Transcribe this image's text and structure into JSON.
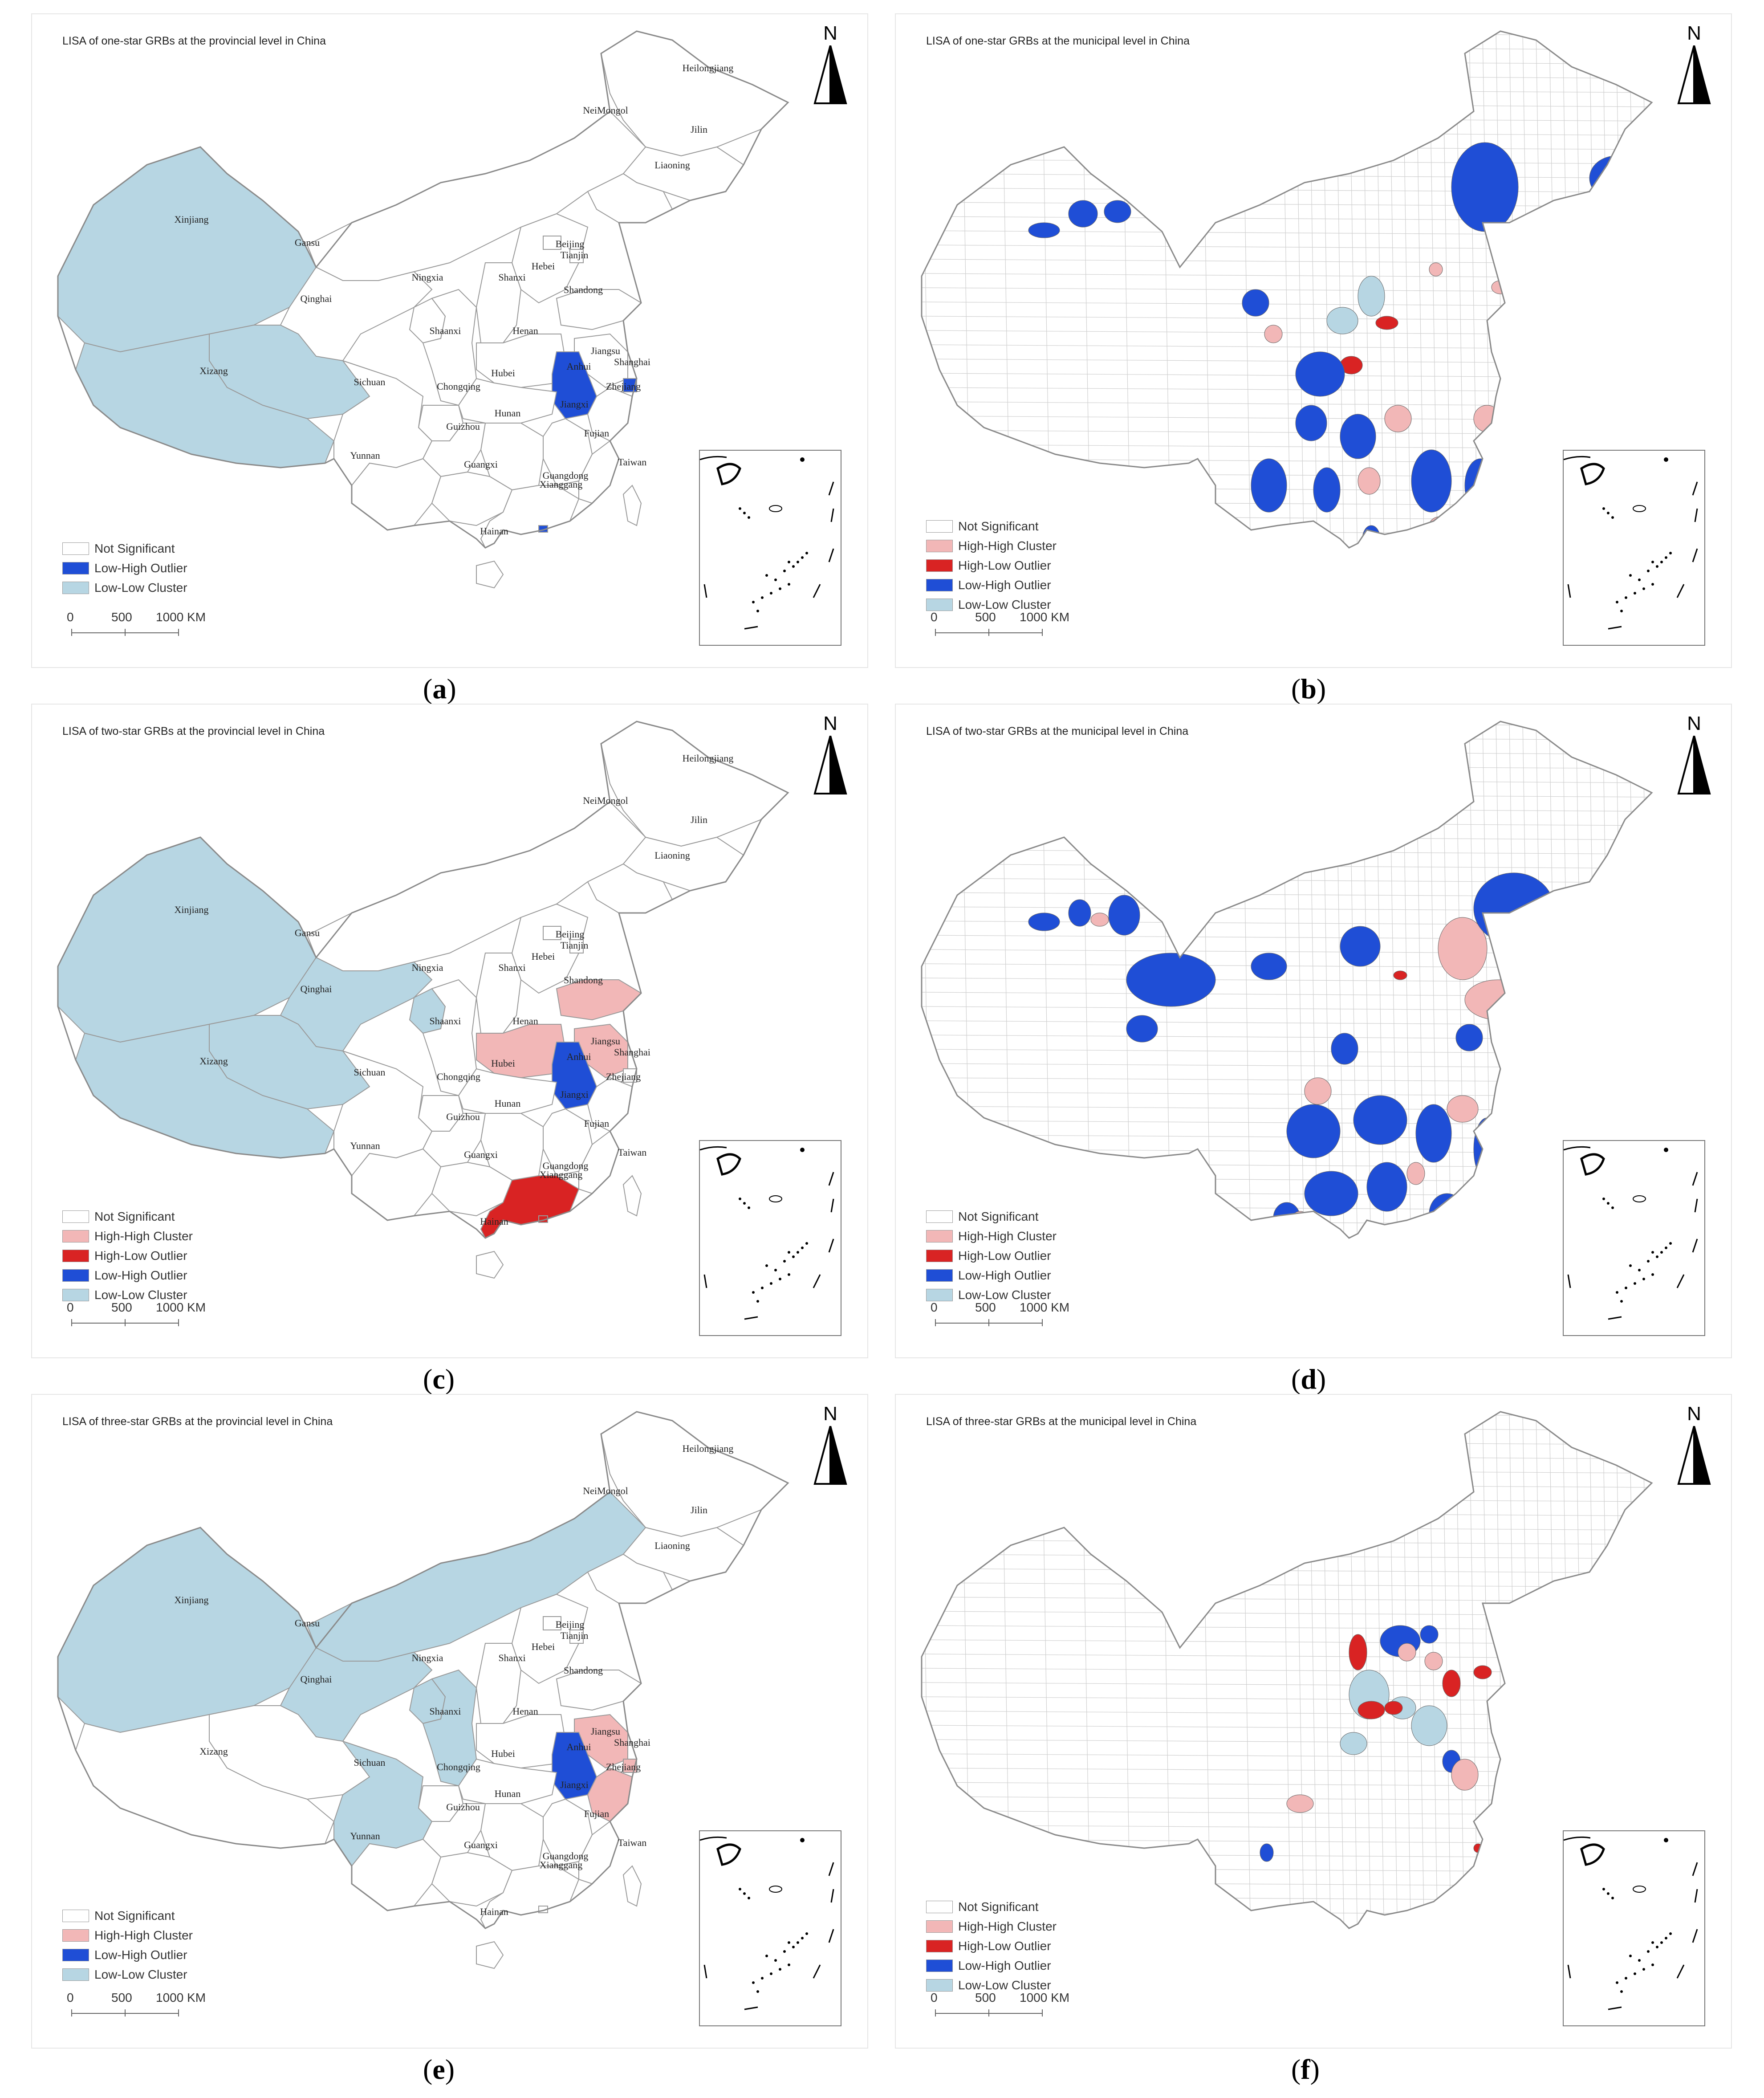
{
  "north_label": "N",
  "scale_labels": [
    "0",
    "500",
    "1000 KM"
  ],
  "colors": {
    "not_significant": "#ffffff",
    "high_high": "#f2b7b7",
    "high_low": "#d92323",
    "low_high": "#1f4ed6",
    "low_low": "#b7d6e3",
    "border": "#9a9a9a"
  },
  "legend_labels": {
    "not_significant": "Not Significant",
    "high_high": "High-High Cluster",
    "high_low": "High-Low Outlier",
    "low_high": "Low-High Outlier",
    "low_low": "Low-Low Cluster"
  },
  "province_names": {
    "Heilongjiang": "Heilongjiang",
    "NeiMongol": "NeiMongol",
    "Jilin": "Jilin",
    "Liaoning": "Liaoning",
    "Xinjiang": "Xinjiang",
    "Gansu": "Gansu",
    "Beijing": "Beijing",
    "Tianjin": "Tianjin",
    "Hebei": "Hebei",
    "Ningxia": "Ningxia",
    "Shanxi": "Shanxi",
    "Qinghai": "Qinghai",
    "Shandong": "Shandong",
    "Shaanxi": "Shaanxi",
    "Henan": "Henan",
    "Jiangsu": "Jiangsu",
    "Xizang": "Xizang",
    "Anhui": "Anhui",
    "Shanghai": "Shanghai",
    "Sichuan": "Sichuan",
    "Chongqing": "Chongqing",
    "Hubei": "Hubei",
    "Zhejiang": "Zhejiang",
    "Jiangxi": "Jiangxi",
    "Guizhou": "Guizhou",
    "Hunan": "Hunan",
    "Fujian": "Fujian",
    "Yunnan": "Yunnan",
    "Guangxi": "Guangxi",
    "Taiwan": "Taiwan",
    "Guangdong": "Guangdong",
    "Xianggang": "Xianggang",
    "Hainan": "Hainan"
  },
  "panels": [
    {
      "id": "a",
      "caption": "a",
      "level": "provincial",
      "title": "LISA of one-star GRBs at the provincial level in China",
      "legend": [
        "not_significant",
        "low_high",
        "low_low"
      ],
      "provinces": {
        "Xinjiang": "low_low",
        "Qinghai": "low_low",
        "Xizang": "low_low",
        "Anhui": "low_high",
        "Shanghai": "low_high",
        "Xianggang": "low_high"
      }
    },
    {
      "id": "b",
      "caption": "b",
      "level": "municipal",
      "title": "LISA of one-star GRBs at the municipal level in China",
      "legend": [
        "not_significant",
        "high_high",
        "high_low",
        "low_high",
        "low_low"
      ],
      "patches": [
        [
          "low_high",
          300,
          470,
          70,
          34
        ],
        [
          "low_high",
          390,
          420,
          65,
          60
        ],
        [
          "low_high",
          470,
          420,
          60,
          50
        ],
        [
          "low_high",
          1250,
          290,
          150,
          200
        ],
        [
          "low_high",
          1560,
          320,
          120,
          100
        ],
        [
          "low_high",
          1530,
          440,
          70,
          40
        ],
        [
          "low_low",
          1040,
          590,
          60,
          90
        ],
        [
          "low_low",
          970,
          660,
          70,
          60
        ],
        [
          "high_low",
          1080,
          680,
          50,
          30
        ],
        [
          "high_low",
          1000,
          770,
          50,
          40
        ],
        [
          "low_high",
          900,
          760,
          110,
          100
        ],
        [
          "low_high",
          780,
          620,
          60,
          60
        ],
        [
          "high_high",
          830,
          700,
          40,
          40
        ],
        [
          "low_high",
          900,
          880,
          70,
          80
        ],
        [
          "low_high",
          1000,
          900,
          80,
          100
        ],
        [
          "high_high",
          1100,
          880,
          60,
          60
        ],
        [
          "low_high",
          1160,
          980,
          90,
          140
        ],
        [
          "low_high",
          1280,
          1000,
          70,
          120
        ],
        [
          "high_high",
          1300,
          880,
          60,
          60
        ],
        [
          "low_high",
          1370,
          860,
          60,
          80
        ],
        [
          "low_high",
          800,
          1000,
          80,
          120
        ],
        [
          "low_high",
          940,
          1020,
          60,
          100
        ],
        [
          "high_high",
          900,
          1150,
          60,
          50
        ],
        [
          "low_high",
          840,
          1150,
          40,
          80
        ],
        [
          "high_high",
          1040,
          1020,
          50,
          60
        ],
        [
          "high_high",
          1200,
          1130,
          50,
          40
        ],
        [
          "low_high",
          1050,
          1150,
          40,
          60
        ],
        [
          "high_high",
          1340,
          1000,
          40,
          50
        ],
        [
          "low_high",
          1260,
          1160,
          50,
          40
        ],
        [
          "high_high",
          1380,
          800,
          40,
          50
        ],
        [
          "high_high",
          1340,
          600,
          40,
          30
        ],
        [
          "high_high",
          1200,
          560,
          30,
          30
        ],
        [
          "low_high",
          1030,
          1240,
          40,
          50
        ]
      ]
    },
    {
      "id": "c",
      "caption": "c",
      "level": "provincial",
      "title": "LISA of two-star GRBs at the provincial level in China",
      "legend": [
        "not_significant",
        "high_high",
        "high_low",
        "low_high",
        "low_low"
      ],
      "provinces": {
        "Xinjiang": "low_low",
        "Qinghai": "low_low",
        "Xizang": "low_low",
        "Gansu": "low_low",
        "Ningxia": "low_low",
        "Henan": "high_high",
        "Shandong": "high_high",
        "Jiangsu": "high_high",
        "Anhui": "low_high",
        "Guangdong": "high_low",
        "Xianggang": "high_low"
      }
    },
    {
      "id": "d",
      "caption": "d",
      "level": "municipal",
      "title": "LISA of two-star GRBs at the municipal level in China",
      "legend": [
        "not_significant",
        "high_high",
        "high_low",
        "low_high",
        "low_low"
      ],
      "patches": [
        [
          "low_high",
          300,
          470,
          70,
          40
        ],
        [
          "low_high",
          390,
          440,
          50,
          60
        ],
        [
          "high_high",
          440,
          470,
          40,
          30
        ],
        [
          "low_high",
          480,
          430,
          70,
          90
        ],
        [
          "low_high",
          520,
          560,
          200,
          120
        ],
        [
          "low_high",
          520,
          700,
          70,
          60
        ],
        [
          "low_high",
          800,
          560,
          80,
          60
        ],
        [
          "low_high",
          1000,
          500,
          90,
          90
        ],
        [
          "high_low",
          1120,
          600,
          30,
          20
        ],
        [
          "high_high",
          1220,
          480,
          110,
          140
        ],
        [
          "low_high",
          1300,
          380,
          180,
          160
        ],
        [
          "low_high",
          1520,
          420,
          150,
          100
        ],
        [
          "high_high",
          1500,
          520,
          60,
          60
        ],
        [
          "high_high",
          1280,
          620,
          150,
          90
        ],
        [
          "low_high",
          1260,
          720,
          60,
          60
        ],
        [
          "high_high",
          1360,
          750,
          70,
          80
        ],
        [
          "low_high",
          980,
          740,
          60,
          70
        ],
        [
          "high_high",
          920,
          840,
          60,
          60
        ],
        [
          "low_high",
          880,
          900,
          120,
          120
        ],
        [
          "low_high",
          1030,
          880,
          120,
          110
        ],
        [
          "low_high",
          1170,
          900,
          80,
          130
        ],
        [
          "high_high",
          1240,
          880,
          70,
          60
        ],
        [
          "low_high",
          1300,
          930,
          60,
          140
        ],
        [
          "high_high",
          1370,
          860,
          60,
          60
        ],
        [
          "low_high",
          920,
          1050,
          120,
          100
        ],
        [
          "low_high",
          850,
          1120,
          60,
          70
        ],
        [
          "high_high",
          890,
          1140,
          40,
          40
        ],
        [
          "low_high",
          1060,
          1030,
          90,
          110
        ],
        [
          "high_high",
          1150,
          1030,
          40,
          50
        ],
        [
          "low_high",
          1200,
          1100,
          80,
          90
        ],
        [
          "high_low",
          1300,
          1130,
          20,
          20
        ],
        [
          "low_high",
          1030,
          1270,
          40,
          40
        ]
      ]
    },
    {
      "id": "e",
      "caption": "e",
      "level": "provincial",
      "title": "LISA of three-star GRBs at the provincial level in China",
      "legend": [
        "not_significant",
        "high_high",
        "low_high",
        "low_low"
      ],
      "provinces": {
        "Xinjiang": "low_low",
        "Gansu": "low_low",
        "NeiMongol": "low_low",
        "Ningxia": "low_low",
        "Shaanxi": "low_low",
        "Sichuan": "low_low",
        "Anhui": "low_high",
        "Jiangsu": "high_high",
        "Shanghai": "high_high",
        "Zhejiang": "high_high"
      }
    },
    {
      "id": "f",
      "caption": "f",
      "level": "municipal",
      "title": "LISA of three-star GRBs at the municipal level in China",
      "legend": [
        "not_significant",
        "high_high",
        "high_low",
        "low_high",
        "low_low"
      ],
      "patches": [
        [
          "high_low",
          1020,
          540,
          40,
          80
        ],
        [
          "low_high",
          1090,
          520,
          90,
          70
        ],
        [
          "low_high",
          1180,
          520,
          40,
          40
        ],
        [
          "high_high",
          1130,
          560,
          40,
          40
        ],
        [
          "high_high",
          1190,
          580,
          40,
          40
        ],
        [
          "low_low",
          1020,
          620,
          90,
          110
        ],
        [
          "low_low",
          1110,
          680,
          60,
          50
        ],
        [
          "high_low",
          1040,
          690,
          60,
          40
        ],
        [
          "high_low",
          1100,
          690,
          40,
          30
        ],
        [
          "high_low",
          1230,
          620,
          40,
          60
        ],
        [
          "high_low",
          1300,
          610,
          40,
          30
        ],
        [
          "low_low",
          1160,
          700,
          80,
          90
        ],
        [
          "low_low",
          1000,
          760,
          60,
          50
        ],
        [
          "low_high",
          1230,
          800,
          40,
          50
        ],
        [
          "high_high",
          1250,
          820,
          60,
          70
        ],
        [
          "high_high",
          880,
          900,
          60,
          40
        ],
        [
          "low_high",
          820,
          1010,
          30,
          40
        ],
        [
          "high_low",
          1300,
          1010,
          20,
          20
        ]
      ]
    }
  ]
}
